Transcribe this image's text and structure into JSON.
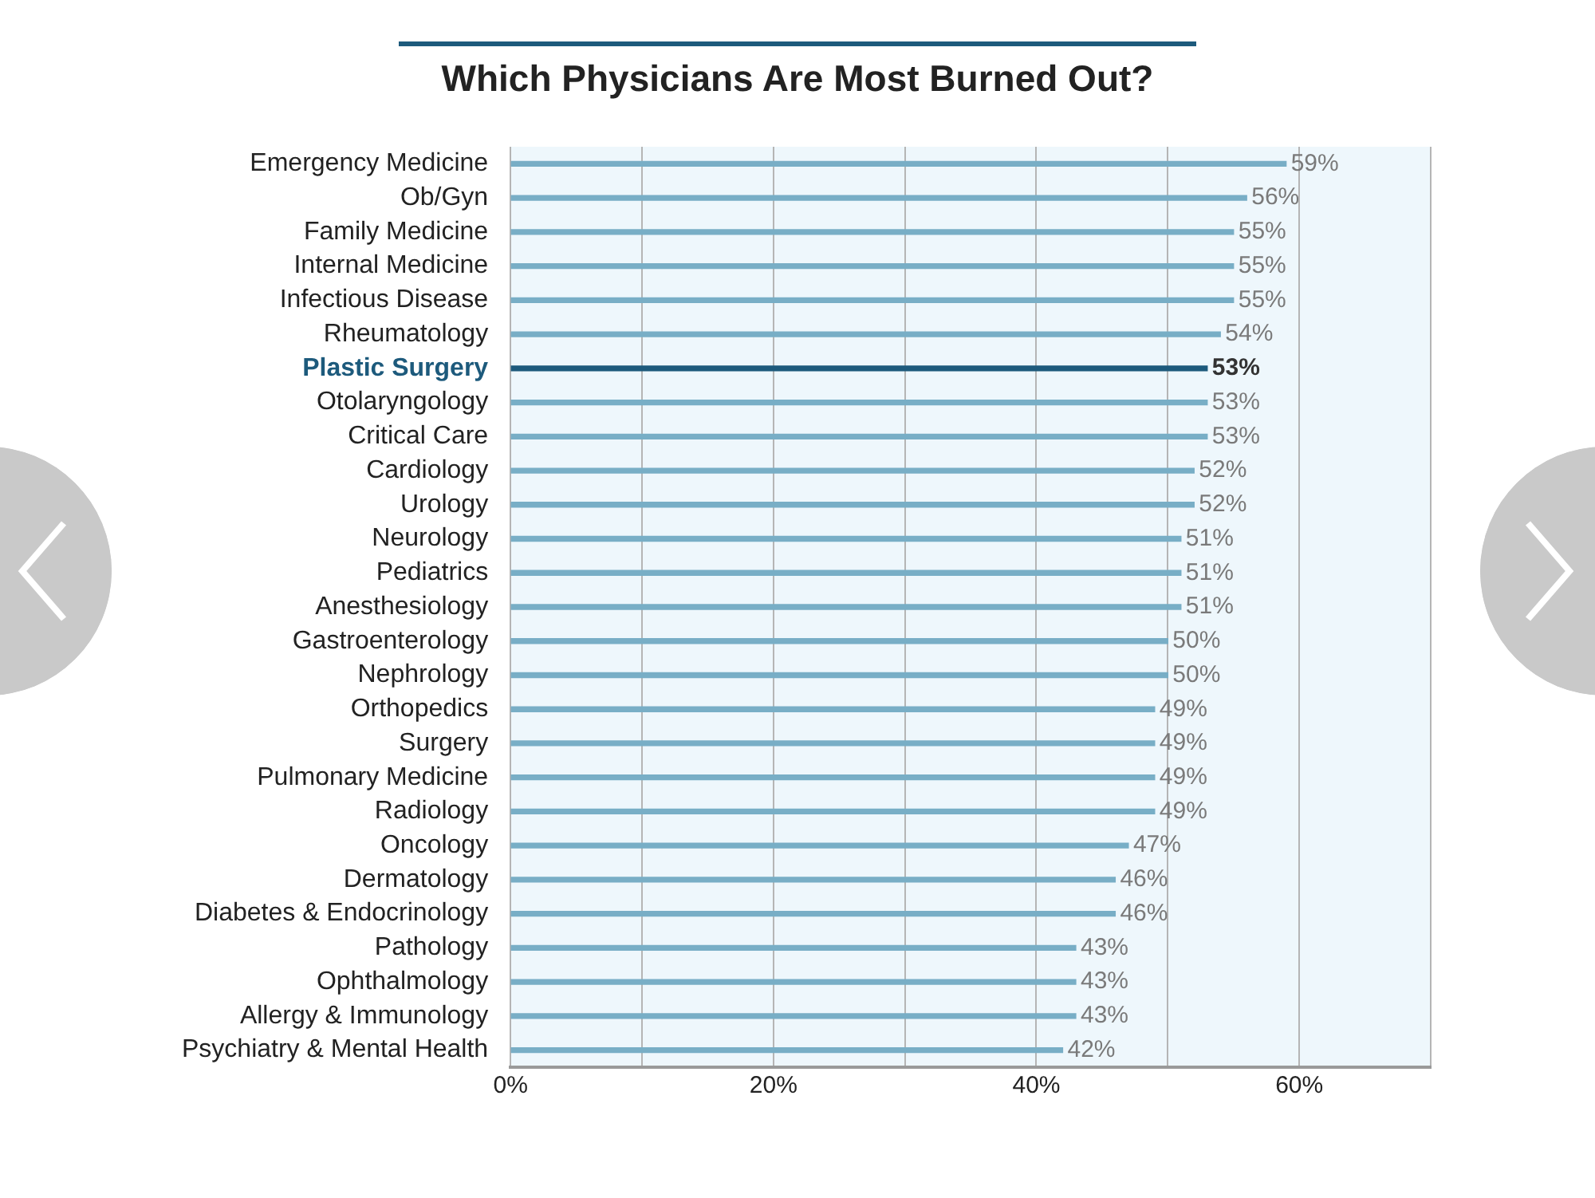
{
  "chart_data": {
    "type": "bar",
    "orientation": "horizontal",
    "title": "Which Physicians Are Most Burned Out?",
    "categories": [
      "Emergency Medicine",
      "Ob/Gyn",
      "Family Medicine",
      "Internal Medicine",
      "Infectious Disease",
      "Rheumatology",
      "Plastic Surgery",
      "Otolaryngology",
      "Critical Care",
      "Cardiology",
      "Urology",
      "Neurology",
      "Pediatrics",
      "Anesthesiology",
      "Gastroenterology",
      "Nephrology",
      "Orthopedics",
      "Surgery",
      "Pulmonary Medicine",
      "Radiology",
      "Oncology",
      "Dermatology",
      "Diabetes & Endocrinology",
      "Pathology",
      "Ophthalmology",
      "Allergy & Immunology",
      "Psychiatry & Mental Health"
    ],
    "values": [
      59,
      56,
      55,
      55,
      55,
      54,
      53,
      53,
      53,
      52,
      52,
      51,
      51,
      51,
      50,
      50,
      49,
      49,
      49,
      49,
      47,
      46,
      46,
      43,
      43,
      43,
      42
    ],
    "value_labels": [
      "59%",
      "56%",
      "55%",
      "55%",
      "55%",
      "54%",
      "53%",
      "53%",
      "53%",
      "52%",
      "52%",
      "51%",
      "51%",
      "51%",
      "50%",
      "50%",
      "49%",
      "49%",
      "49%",
      "49%",
      "47%",
      "46%",
      "46%",
      "43%",
      "43%",
      "43%",
      "42%"
    ],
    "colors": [
      "#78aec6",
      "#78aec6",
      "#78aec6",
      "#78aec6",
      "#78aec6",
      "#78aec6",
      "#1d5a7c",
      "#78aec6",
      "#78aec6",
      "#78aec6",
      "#78aec6",
      "#78aec6",
      "#78aec6",
      "#78aec6",
      "#78aec6",
      "#78aec6",
      "#78aec6",
      "#78aec6",
      "#78aec6",
      "#78aec6",
      "#78aec6",
      "#78aec6",
      "#78aec6",
      "#78aec6",
      "#78aec6",
      "#78aec6",
      "#78aec6"
    ],
    "xlim": [
      0,
      70
    ],
    "xticks": [
      {
        "value": 0,
        "label": "0%"
      },
      {
        "value": 10,
        "label": null
      },
      {
        "value": 20,
        "label": "20%"
      },
      {
        "value": 30,
        "label": null
      },
      {
        "value": 40,
        "label": "40%"
      },
      {
        "value": 50,
        "label": null
      },
      {
        "value": 60,
        "label": "60%"
      },
      {
        "value": 70,
        "label": null
      }
    ],
    "grid": "x"
  }
}
